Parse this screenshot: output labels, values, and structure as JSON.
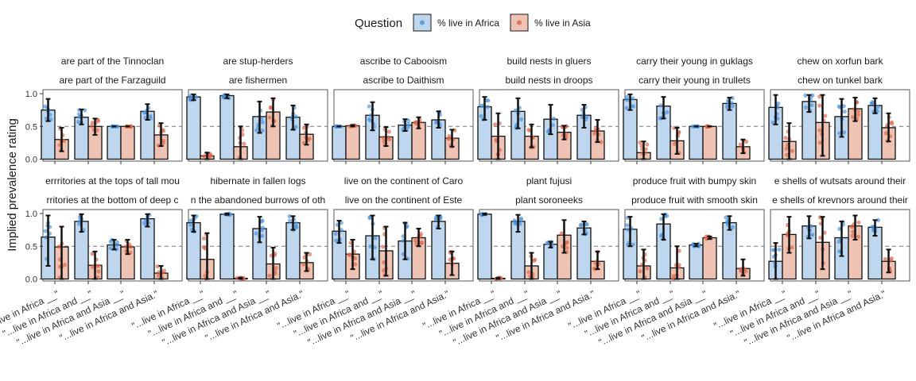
{
  "legend": {
    "title": "Question",
    "items": [
      {
        "label": "% live in Africa",
        "fill": "#bfd7ee",
        "point": "#4a90d9"
      },
      {
        "label": "% live in Asia",
        "fill": "#efc3b3",
        "point": "#d9664a"
      }
    ]
  },
  "chart_data": {
    "type": "bar",
    "ylabel": "Implied prevalence rating",
    "ylim": [
      0,
      1
    ],
    "yticks": [
      "0.0",
      "0.5",
      "1.0"
    ],
    "reference_line": 0.5,
    "categories": [
      "\"...live in Africa __\"",
      "\"...live in Africa and __\"",
      "\"...live in Africa and Asia __\"",
      "\"...live in Africa and Asia.\""
    ],
    "facets": [
      {
        "title1": "are part of the Tinnoclan",
        "title2": "are part of the Farzaguild",
        "africa": [
          0.75,
          0.64,
          0.5,
          0.73
        ],
        "asia": [
          0.3,
          0.5,
          0.5,
          0.37
        ],
        "africa_ci": [
          [
            0.58,
            0.92
          ],
          [
            0.53,
            0.76
          ],
          [
            0.5,
            0.5
          ],
          [
            0.6,
            0.84
          ]
        ],
        "asia_ci": [
          [
            0.12,
            0.48
          ],
          [
            0.37,
            0.62
          ],
          [
            0.5,
            0.5
          ],
          [
            0.2,
            0.55
          ]
        ]
      },
      {
        "title1": "are stup-herders",
        "title2": "are fishermen",
        "africa": [
          0.95,
          0.97,
          0.65,
          0.64
        ],
        "asia": [
          0.05,
          0.19,
          0.72,
          0.38
        ],
        "africa_ci": [
          [
            0.9,
            0.99
          ],
          [
            0.93,
            0.99
          ],
          [
            0.4,
            0.88
          ],
          [
            0.45,
            0.82
          ]
        ],
        "asia_ci": [
          [
            0.0,
            0.1
          ],
          [
            0.0,
            0.5
          ],
          [
            0.5,
            0.93
          ],
          [
            0.22,
            0.53
          ]
        ]
      },
      {
        "title1": "ascribe to Cabooism",
        "title2": "ascribe to Daithism",
        "africa": [
          0.5,
          0.67,
          0.52,
          0.6
        ],
        "asia": [
          0.51,
          0.34,
          0.56,
          0.32
        ],
        "africa_ci": [
          [
            0.5,
            0.5
          ],
          [
            0.44,
            0.87
          ],
          [
            0.43,
            0.61
          ],
          [
            0.48,
            0.73
          ]
        ],
        "asia_ci": [
          [
            0.5,
            0.52
          ],
          [
            0.2,
            0.49
          ],
          [
            0.47,
            0.64
          ],
          [
            0.19,
            0.45
          ]
        ]
      },
      {
        "title1": "build nests in gluers",
        "title2": "build nests in droops",
        "africa": [
          0.8,
          0.73,
          0.61,
          0.67
        ],
        "asia": [
          0.35,
          0.35,
          0.41,
          0.43
        ],
        "africa_ci": [
          [
            0.6,
            0.95
          ],
          [
            0.47,
            0.93
          ],
          [
            0.38,
            0.83
          ],
          [
            0.48,
            0.83
          ]
        ],
        "asia_ci": [
          [
            0.0,
            0.7
          ],
          [
            0.18,
            0.53
          ],
          [
            0.3,
            0.51
          ],
          [
            0.26,
            0.6
          ]
        ]
      },
      {
        "title1": "carry their young in guklags",
        "title2": "carry their young in trullets",
        "africa": [
          0.91,
          0.81,
          0.5,
          0.85
        ],
        "asia": [
          0.1,
          0.28,
          0.5,
          0.19
        ],
        "africa_ci": [
          [
            0.75,
            0.99
          ],
          [
            0.62,
            0.95
          ],
          [
            0.5,
            0.5
          ],
          [
            0.75,
            0.94
          ]
        ],
        "asia_ci": [
          [
            0.0,
            0.27
          ],
          [
            0.08,
            0.48
          ],
          [
            0.5,
            0.5
          ],
          [
            0.09,
            0.3
          ]
        ]
      },
      {
        "title1": "chew on xorfun bark",
        "title2": "chew on tunkel bark",
        "africa": [
          0.79,
          0.88,
          0.65,
          0.82
        ],
        "asia": [
          0.27,
          0.56,
          0.77,
          0.48
        ],
        "africa_ci": [
          [
            0.53,
            0.98
          ],
          [
            0.72,
            0.98
          ],
          [
            0.34,
            0.92
          ],
          [
            0.7,
            0.93
          ]
        ],
        "asia_ci": [
          [
            0.0,
            0.55
          ],
          [
            0.05,
            0.98
          ],
          [
            0.58,
            0.94
          ],
          [
            0.27,
            0.7
          ]
        ]
      },
      {
        "title1": "errritories at the tops of tall mou",
        "title2": "rritories at the bottom of deep c",
        "africa": [
          0.64,
          0.88,
          0.52,
          0.92
        ],
        "asia": [
          0.49,
          0.21,
          0.49,
          0.09
        ],
        "africa_ci": [
          [
            0.2,
            0.97
          ],
          [
            0.72,
            0.99
          ],
          [
            0.45,
            0.6
          ],
          [
            0.8,
            0.99
          ]
        ],
        "asia_ci": [
          [
            0.0,
            0.8
          ],
          [
            0.0,
            0.42
          ],
          [
            0.38,
            0.6
          ],
          [
            0.0,
            0.2
          ]
        ]
      },
      {
        "title1": "hibernate in fallen logs",
        "title2": "n the abandoned burrows of oth",
        "africa": [
          0.86,
          0.99,
          0.77,
          0.86
        ],
        "asia": [
          0.3,
          0.01,
          0.23,
          0.25
        ],
        "africa_ci": [
          [
            0.72,
            0.97
          ],
          [
            0.98,
            1.0
          ],
          [
            0.56,
            0.95
          ],
          [
            0.75,
            0.96
          ]
        ],
        "asia_ci": [
          [
            0.0,
            0.7
          ],
          [
            0.0,
            0.02
          ],
          [
            0.0,
            0.48
          ],
          [
            0.12,
            0.4
          ]
        ]
      },
      {
        "title1": "live on the continent of Caro",
        "title2": "live on the continent of Este",
        "africa": [
          0.73,
          0.66,
          0.58,
          0.88
        ],
        "asia": [
          0.38,
          0.43,
          0.63,
          0.24
        ],
        "africa_ci": [
          [
            0.55,
            0.89
          ],
          [
            0.3,
            0.97
          ],
          [
            0.3,
            0.86
          ],
          [
            0.77,
            0.97
          ]
        ],
        "asia_ci": [
          [
            0.15,
            0.6
          ],
          [
            0.05,
            0.8
          ],
          [
            0.5,
            0.77
          ],
          [
            0.06,
            0.42
          ]
        ]
      },
      {
        "title1": "plant fujusi",
        "title2": "plant soroneeks",
        "africa": [
          0.99,
          0.88,
          0.53,
          0.78
        ],
        "asia": [
          0.01,
          0.2,
          0.67,
          0.27
        ],
        "africa_ci": [
          [
            0.98,
            1.0
          ],
          [
            0.72,
            0.98
          ],
          [
            0.48,
            0.57
          ],
          [
            0.68,
            0.88
          ]
        ],
        "asia_ci": [
          [
            0.0,
            0.02
          ],
          [
            0.0,
            0.4
          ],
          [
            0.4,
            0.9
          ],
          [
            0.15,
            0.42
          ]
        ]
      },
      {
        "title1": "produce fruit with bumpy skin",
        "title2": "produce fruit with smooth skin",
        "africa": [
          0.76,
          0.84,
          0.52,
          0.86
        ],
        "asia": [
          0.2,
          0.17,
          0.63,
          0.16
        ],
        "africa_ci": [
          [
            0.5,
            0.95
          ],
          [
            0.6,
            0.99
          ],
          [
            0.5,
            0.54
          ],
          [
            0.75,
            0.96
          ]
        ],
        "asia_ci": [
          [
            0.0,
            0.45
          ],
          [
            0.0,
            0.5
          ],
          [
            0.61,
            0.65
          ],
          [
            0.05,
            0.3
          ]
        ]
      },
      {
        "title1": "e shells of wutsats around their",
        "title2": "e shells of krevnors around their",
        "africa": [
          0.27,
          0.81,
          0.63,
          0.79
        ],
        "asia": [
          0.68,
          0.56,
          0.81,
          0.27
        ],
        "africa_ci": [
          [
            0.0,
            0.55
          ],
          [
            0.62,
            0.96
          ],
          [
            0.35,
            0.88
          ],
          [
            0.66,
            0.9
          ]
        ],
        "asia_ci": [
          [
            0.4,
            0.95
          ],
          [
            0.15,
            0.95
          ],
          [
            0.6,
            0.97
          ],
          [
            0.1,
            0.45
          ]
        ]
      }
    ]
  }
}
